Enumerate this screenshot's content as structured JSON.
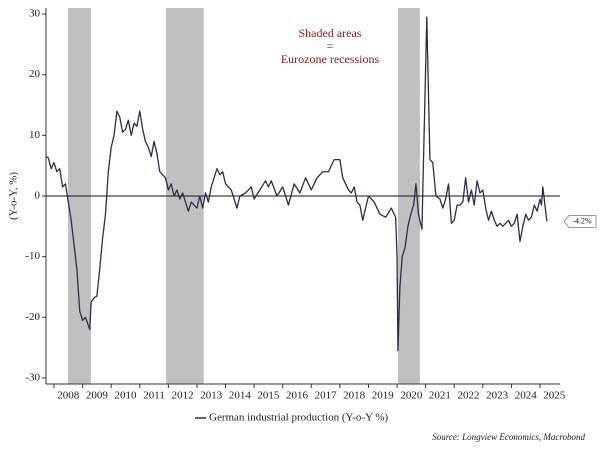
{
  "chart_data": {
    "type": "line",
    "y_label": "(Y-o-Y, %)",
    "annotation": [
      "Shaded areas",
      "=",
      "Eurozone recessions"
    ],
    "source": "Source: Longview Economics, Macrobond",
    "recessions": [
      [
        2008.49,
        2009.29
      ],
      [
        2011.92,
        2013.24
      ],
      [
        2020.03,
        2020.8
      ]
    ],
    "recession_color": "#c0c0c0",
    "xlim": [
      2007.72,
      2025.7
    ],
    "xticks": [
      {
        "value": 2008,
        "label": "2008"
      },
      {
        "value": 2009,
        "label": "2009"
      },
      {
        "value": 2010,
        "label": "2010"
      },
      {
        "value": 2011,
        "label": "2011"
      },
      {
        "value": 2012,
        "label": "2012"
      },
      {
        "value": 2013,
        "label": "2013"
      },
      {
        "value": 2014,
        "label": "2014"
      },
      {
        "value": 2015,
        "label": "2015"
      },
      {
        "value": 2016,
        "label": "2016"
      },
      {
        "value": 2017,
        "label": "2017"
      },
      {
        "value": 2018,
        "label": "2018"
      },
      {
        "value": 2019,
        "label": "2019"
      },
      {
        "value": 2020,
        "label": "2020"
      },
      {
        "value": 2021,
        "label": "2021"
      },
      {
        "value": 2022,
        "label": "2022"
      },
      {
        "value": 2023,
        "label": "2023"
      },
      {
        "value": 2024,
        "label": "2024"
      },
      {
        "value": 2025,
        "label": "2025"
      }
    ],
    "ylim": [
      -31,
      31
    ],
    "yticks": [
      -30,
      -20,
      -10,
      0,
      10,
      20,
      30
    ],
    "x": [
      2007.72,
      2007.8,
      2007.9,
      2008.0,
      2008.1,
      2008.2,
      2008.3,
      2008.4,
      2008.5,
      2008.6,
      2008.7,
      2008.8,
      2008.9,
      2009.0,
      2009.1,
      2009.25,
      2009.3,
      2009.4,
      2009.5,
      2009.6,
      2009.7,
      2009.8,
      2009.9,
      2010.0,
      2010.1,
      2010.2,
      2010.3,
      2010.4,
      2010.5,
      2010.6,
      2010.7,
      2010.8,
      2010.9,
      2011.0,
      2011.1,
      2011.2,
      2011.3,
      2011.4,
      2011.5,
      2011.6,
      2011.7,
      2011.8,
      2011.9,
      2012.0,
      2012.1,
      2012.2,
      2012.3,
      2012.4,
      2012.5,
      2012.6,
      2012.7,
      2012.8,
      2012.9,
      2013.0,
      2013.1,
      2013.2,
      2013.3,
      2013.4,
      2013.5,
      2013.6,
      2013.7,
      2013.8,
      2013.9,
      2014.0,
      2014.2,
      2014.4,
      2014.5,
      2014.7,
      2014.9,
      2015.0,
      2015.2,
      2015.4,
      2015.5,
      2015.6,
      2015.8,
      2016.0,
      2016.2,
      2016.4,
      2016.6,
      2016.8,
      2017.0,
      2017.2,
      2017.4,
      2017.6,
      2017.8,
      2018.0,
      2018.1,
      2018.3,
      2018.4,
      2018.5,
      2018.6,
      2018.7,
      2018.8,
      2018.9,
      2019.0,
      2019.2,
      2019.4,
      2019.6,
      2019.8,
      2019.95,
      2020.0,
      2020.03,
      2020.1,
      2020.18,
      2020.28,
      2020.38,
      2020.48,
      2020.58,
      2020.66,
      2020.75,
      2020.87,
      2021.04,
      2021.15,
      2021.25,
      2021.36,
      2021.5,
      2021.6,
      2021.7,
      2021.8,
      2021.9,
      2022.0,
      2022.1,
      2022.2,
      2022.3,
      2022.4,
      2022.5,
      2022.6,
      2022.7,
      2022.8,
      2022.9,
      2023.0,
      2023.1,
      2023.2,
      2023.3,
      2023.4,
      2023.5,
      2023.6,
      2023.7,
      2023.9,
      2024.0,
      2024.1,
      2024.2,
      2024.3,
      2024.4,
      2024.5,
      2024.6,
      2024.7,
      2024.8,
      2024.9,
      2025.0,
      2025.05,
      2025.1,
      2025.24
    ],
    "series": [
      {
        "name": "German industrial production (Y-o-Y %)",
        "color": "#2b2d4f",
        "values": [
          6.5,
          6.3,
          4.5,
          5.5,
          4,
          4.5,
          1.5,
          2,
          -1,
          -4,
          -8,
          -12,
          -19,
          -20.5,
          -20,
          -22,
          -17.5,
          -16.8,
          -16.5,
          -12,
          -7,
          -3,
          4,
          8,
          10,
          14,
          13,
          10.5,
          11,
          12.5,
          10,
          12,
          11.5,
          14,
          11,
          9,
          8,
          6.5,
          9,
          7,
          4,
          3.5,
          3,
          1,
          2,
          0,
          1,
          -0.5,
          0.5,
          -1,
          -2.5,
          -1,
          -1.5,
          -2,
          0,
          -2,
          0.5,
          -1,
          1.5,
          3,
          4.5,
          3.5,
          4,
          2,
          1,
          -2,
          0,
          0.5,
          1.5,
          -0.5,
          1,
          2.5,
          1.5,
          2.5,
          0,
          1.5,
          -1.5,
          2,
          0.5,
          3,
          1,
          3,
          4,
          4,
          6,
          6,
          3,
          1,
          0.5,
          1.5,
          -1,
          -1.5,
          -4,
          -2,
          0,
          -1,
          -3,
          -3.5,
          -2,
          -3.5,
          -10,
          -25.5,
          -15,
          -10,
          -8.5,
          -5,
          -3,
          -1.5,
          2,
          -3,
          -5.5,
          29.5,
          6,
          5.5,
          0,
          -0.5,
          -2,
          -0.5,
          2,
          -4.5,
          -4,
          -1.5,
          -1.5,
          -1,
          3,
          -1,
          1,
          -1.5,
          2.5,
          0.5,
          1,
          -2,
          -4,
          -2.5,
          -4,
          -5,
          -4.5,
          -5,
          -4,
          -5,
          -4.5,
          -3,
          -7.5,
          -5,
          -3,
          -4,
          -3.5,
          -1.5,
          -2.5,
          -0.5,
          -1.5,
          1.5,
          -4.2
        ]
      }
    ],
    "end_label": {
      "value": -4.2,
      "label": "-4.2%"
    }
  }
}
